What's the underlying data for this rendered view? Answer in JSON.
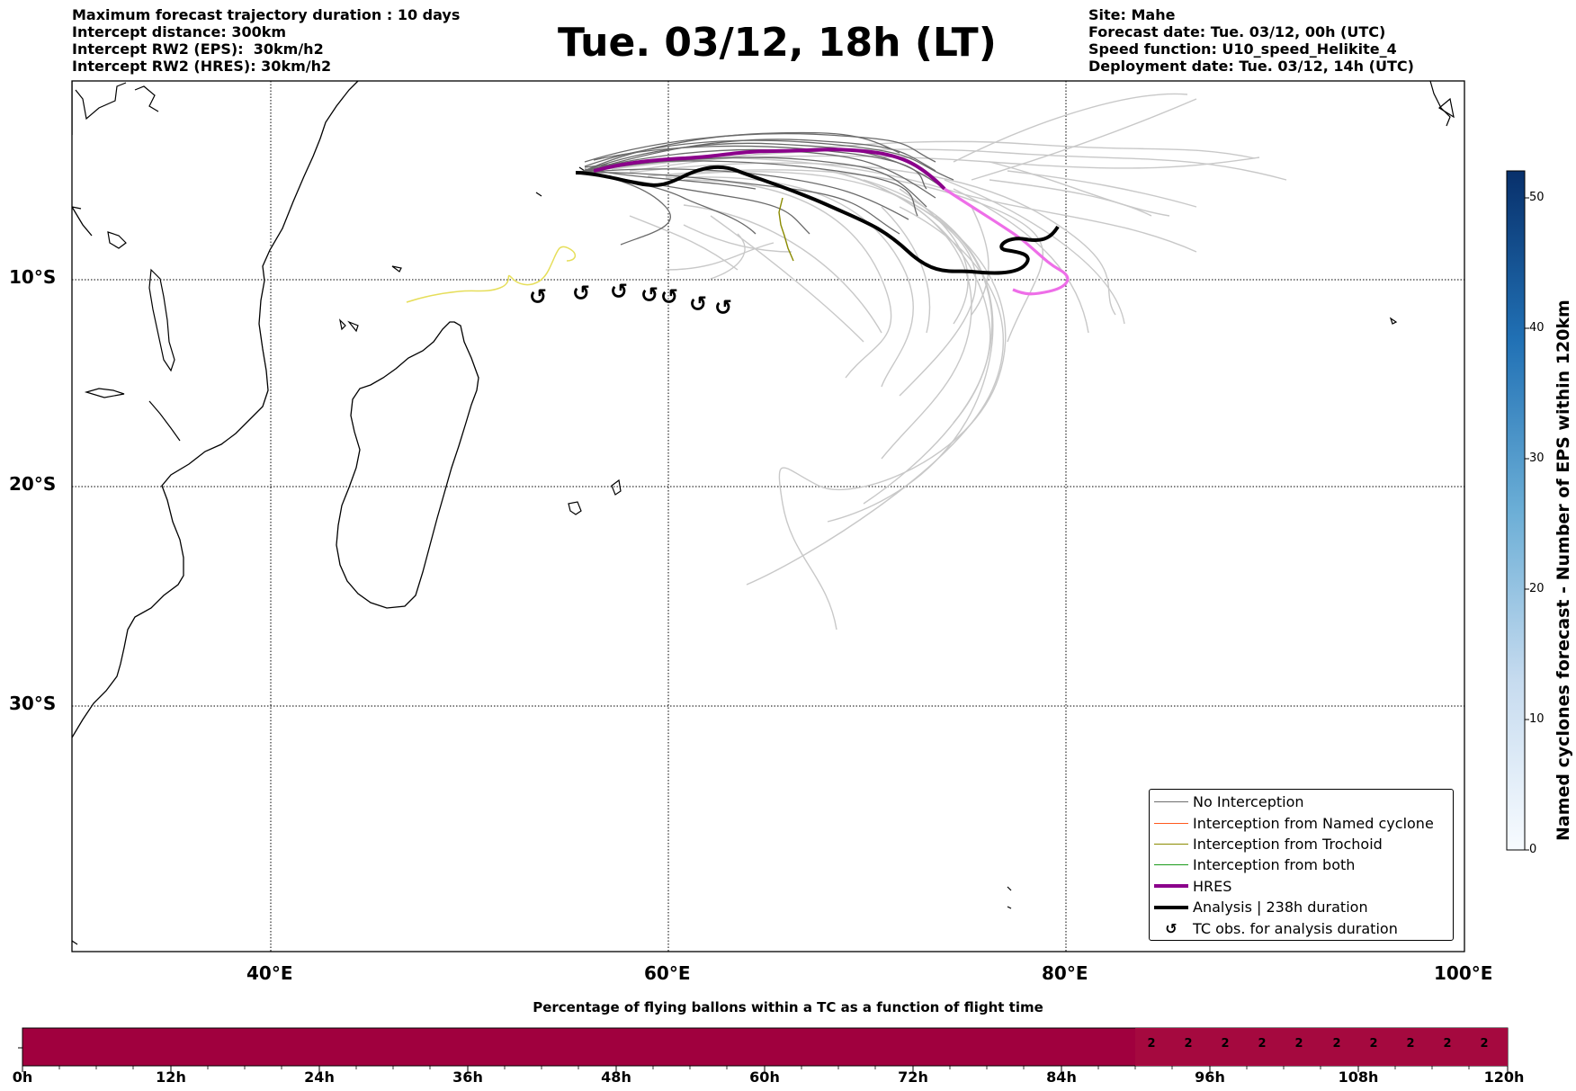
{
  "header_left": [
    "Maximum forecast trajectory duration : 10 days",
    "Intercept distance: 300km",
    "Intercept RW2 (EPS):  30km/h2",
    "Intercept RW2 (HRES): 30km/h2"
  ],
  "title": "Tue. 03/12, 18h (LT)",
  "header_right": [
    "Site: Mahe",
    "Forecast date: Tue. 03/12, 00h (UTC)",
    "Speed function: U10_speed_Helikite_4",
    "Deployment date: Tue. 03/12, 14h (UTC)"
  ],
  "map": {
    "lon_labels": [
      "40°E",
      "60°E",
      "80°E",
      "100°E"
    ],
    "lat_labels": [
      "10°S",
      "20°S",
      "30°S"
    ],
    "lon_range": [
      30,
      100
    ],
    "lat_range": [
      -43.5,
      1.5
    ]
  },
  "legend": [
    {
      "label": "No Interception",
      "color": "#6e6e6e",
      "kind": "line",
      "width": 1.3
    },
    {
      "label": "Interception from Named cyclone",
      "color": "#ff5a1e",
      "kind": "line",
      "width": 1.3
    },
    {
      "label": "Interception from Trochoid",
      "color": "#8a8a00",
      "kind": "line",
      "width": 1.3
    },
    {
      "label": "Interception from both",
      "color": "#1a9a1a",
      "kind": "line",
      "width": 1.3
    },
    {
      "label": "HRES",
      "color": "#8b008b",
      "kind": "line",
      "width": 4
    },
    {
      "label": "Analysis | 238h duration",
      "color": "#000000",
      "kind": "line",
      "width": 4
    },
    {
      "label": "TC obs. for analysis duration",
      "color": "#000000",
      "kind": "symbol",
      "symbol": "↺"
    }
  ],
  "colorbar": {
    "title": "Named cyclones forecast - Number of EPS within 120km",
    "ticks": [
      0,
      10,
      20,
      30,
      40,
      50
    ],
    "range": [
      0,
      52
    ],
    "color_low": "#f7fbff",
    "color_high": "#08306b"
  },
  "timebar": {
    "title": "Percentage of flying ballons within a TC as a function of flight time",
    "tick_labels": [
      "0h",
      "12h",
      "24h",
      "36h",
      "48h",
      "60h",
      "72h",
      "84h",
      "96h",
      "108h",
      "120h"
    ],
    "bar_color": "#a0003e",
    "bar_color_light": "#a5093f",
    "values_label": "2",
    "values_start_hours": 90,
    "values_count": 10
  },
  "tc_symbol": "↺"
}
